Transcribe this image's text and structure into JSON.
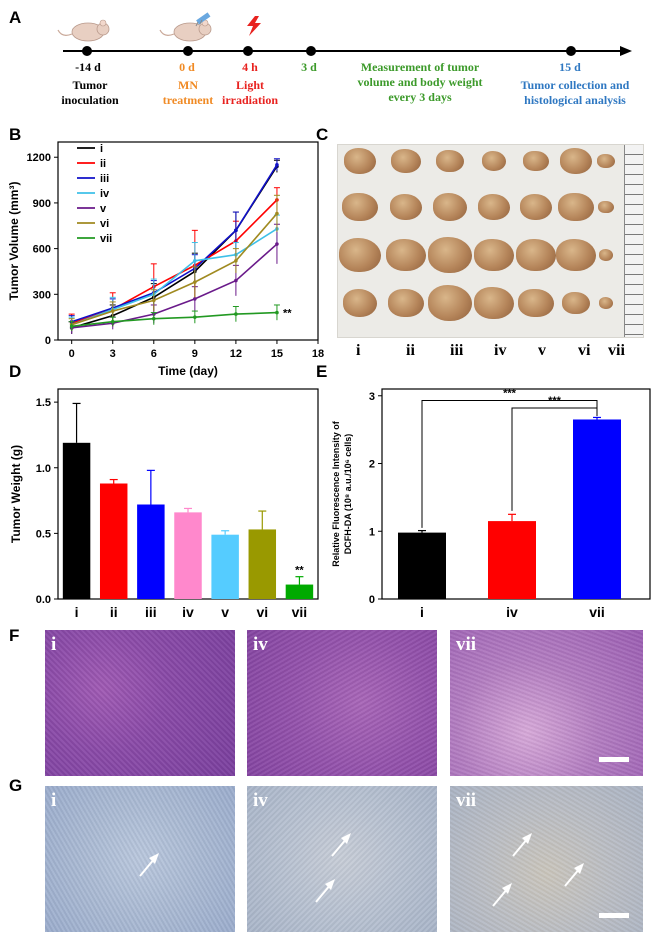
{
  "panels": {
    "A": "A",
    "B": "B",
    "C": "C",
    "D": "D",
    "E": "E",
    "F": "F",
    "G": "G"
  },
  "timeline": {
    "points": [
      {
        "day": "-14 d",
        "desc": "Tumor inoculation",
        "lines": [
          "Tumor",
          "inoculation"
        ],
        "color": "#000000"
      },
      {
        "day": "0 d",
        "desc": "MN treatment",
        "lines": [
          "MN",
          "treatment"
        ],
        "color": "#f08a24"
      },
      {
        "day": "4 h",
        "desc": "Light irradiation",
        "lines": [
          "Light",
          "irradiation"
        ],
        "color": "#e8221f"
      },
      {
        "day": "3 d",
        "desc": "",
        "lines": [],
        "color": "#3c9a2a"
      },
      {
        "day": "15 d",
        "desc": "Tumor collection and histological analysis",
        "lines": [
          "Tumor collection and",
          "histological analysis"
        ],
        "color": "#2f78c2"
      }
    ],
    "measure_lines": [
      "Measurement of tumor",
      "volume and body weight",
      "every 3 days"
    ],
    "measure_color": "#3c9a2a"
  },
  "chart_data": [
    {
      "type": "line",
      "title": "",
      "xlabel": "Time (day)",
      "ylabel": "Tumor Volume (mm³)",
      "xlim": [
        -1,
        18
      ],
      "ylim": [
        0,
        1300
      ],
      "xticks": [
        0,
        3,
        6,
        9,
        12,
        15,
        18
      ],
      "yticks": [
        0,
        300,
        600,
        900,
        1200
      ],
      "x": [
        0,
        3,
        6,
        9,
        12,
        15
      ],
      "series": [
        {
          "name": "i",
          "color": "#000000",
          "values": [
            80,
            160,
            280,
            450,
            720,
            1140
          ],
          "errors": [
            40,
            70,
            90,
            120,
            120,
            40
          ]
        },
        {
          "name": "ii",
          "color": "#ff0000",
          "values": [
            110,
            200,
            350,
            490,
            650,
            920
          ],
          "errors": [
            60,
            110,
            150,
            230,
            130,
            80
          ]
        },
        {
          "name": "iii",
          "color": "#1010c8",
          "values": [
            120,
            210,
            310,
            470,
            720,
            1150
          ],
          "errors": [
            40,
            60,
            80,
            90,
            120,
            40
          ]
        },
        {
          "name": "iv",
          "color": "#3ec0e8",
          "values": [
            100,
            200,
            300,
            520,
            560,
            730
          ],
          "errors": [
            50,
            80,
            100,
            120,
            80,
            90
          ]
        },
        {
          "name": "v",
          "color": "#6a1a8a",
          "values": [
            80,
            110,
            170,
            270,
            390,
            630
          ],
          "errors": [
            40,
            40,
            60,
            80,
            100,
            130
          ]
        },
        {
          "name": "vi",
          "color": "#a08a20",
          "values": [
            100,
            190,
            260,
            380,
            520,
            830
          ],
          "errors": [
            40,
            60,
            70,
            100,
            80,
            120
          ]
        },
        {
          "name": "vii",
          "color": "#229922",
          "values": [
            90,
            120,
            140,
            150,
            170,
            180
          ],
          "errors": [
            30,
            30,
            40,
            40,
            50,
            50
          ]
        }
      ],
      "annotation": "**"
    },
    {
      "type": "bar",
      "xlabel": "",
      "ylabel": "Tumor Weight (g)",
      "ylim": [
        0,
        1.6
      ],
      "yticks": [
        0.0,
        0.5,
        1.0,
        1.5
      ],
      "categories": [
        "i",
        "ii",
        "iii",
        "iv",
        "v",
        "vi",
        "vii"
      ],
      "values": [
        1.19,
        0.88,
        0.72,
        0.66,
        0.49,
        0.53,
        0.11
      ],
      "errors": [
        0.3,
        0.03,
        0.26,
        0.03,
        0.03,
        0.14,
        0.06
      ],
      "colors": [
        "#000000",
        "#ff0000",
        "#0000ff",
        "#ff88cc",
        "#55ccff",
        "#999900",
        "#00aa00"
      ],
      "annotation": "**"
    },
    {
      "type": "bar",
      "xlabel": "",
      "ylabel": "Relative Fluorescence Intensity of DCFH-DA (10⁸ a.u./10⁶ cells)",
      "ylabel_lines": [
        "Relative Fluorescence Intensity of",
        "DCFH-DA (10⁸ a.u./10⁶ cells)"
      ],
      "ylim": [
        0,
        3.1
      ],
      "yticks": [
        0,
        1,
        2,
        3
      ],
      "categories": [
        "i",
        "iv",
        "vii"
      ],
      "values": [
        0.98,
        1.15,
        2.65
      ],
      "errors": [
        0.03,
        0.1,
        0.03
      ],
      "colors": [
        "#000000",
        "#ff0000",
        "#0000ff"
      ],
      "significance": [
        "***",
        "***"
      ]
    }
  ],
  "photo": {
    "labels": [
      "i",
      "ii",
      "iii",
      "iv",
      "v",
      "vi",
      "vii"
    ]
  },
  "histology": {
    "F_labels": [
      "i",
      "iv",
      "vii"
    ],
    "G_labels": [
      "i",
      "iv",
      "vii"
    ]
  }
}
